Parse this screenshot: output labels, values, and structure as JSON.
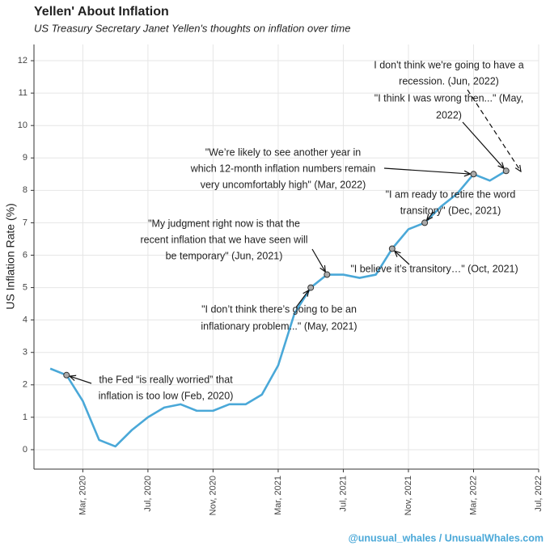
{
  "chart_data": {
    "type": "line",
    "title": "Yellen' About Inflation",
    "subtitle": "US Treasury Secretary Janet Yellen's thoughts on inflation over time",
    "y_label": "US Inflation Rate (%)",
    "x": [
      "2020-01",
      "2020-02",
      "2020-03",
      "2020-04",
      "2020-05",
      "2020-06",
      "2020-07",
      "2020-08",
      "2020-09",
      "2020-10",
      "2020-11",
      "2020-12",
      "2021-01",
      "2021-02",
      "2021-03",
      "2021-04",
      "2021-05",
      "2021-06",
      "2021-07",
      "2021-08",
      "2021-09",
      "2021-10",
      "2021-11",
      "2021-12",
      "2022-01",
      "2022-02",
      "2022-03",
      "2022-04",
      "2022-05"
    ],
    "series": [
      {
        "name": "US Inflation Rate",
        "color": "#4aa8d8",
        "values": [
          2.5,
          2.3,
          1.5,
          0.3,
          0.1,
          0.6,
          1.0,
          1.3,
          1.4,
          1.2,
          1.2,
          1.4,
          1.4,
          1.7,
          2.6,
          4.2,
          5.0,
          5.4,
          5.4,
          5.3,
          5.4,
          6.2,
          6.8,
          7.0,
          7.5,
          7.9,
          8.5,
          8.3,
          8.6
        ]
      }
    ],
    "xlim": [
      "2019-12",
      "2022-07"
    ],
    "xticks": [
      {
        "value": "2020-03",
        "label": "Mar, 2020"
      },
      {
        "value": "2020-07",
        "label": "Jul, 2020"
      },
      {
        "value": "2020-11",
        "label": "Nov, 2020"
      },
      {
        "value": "2021-03",
        "label": "Mar, 2021"
      },
      {
        "value": "2021-07",
        "label": "Jul, 2021"
      },
      {
        "value": "2021-11",
        "label": "Nov, 2021"
      },
      {
        "value": "2022-03",
        "label": "Mar, 2022"
      },
      {
        "value": "2022-07",
        "label": "Jul, 2022"
      }
    ],
    "ylim": [
      -0.6,
      12.5
    ],
    "yticks": [
      0,
      1,
      2,
      3,
      4,
      5,
      6,
      7,
      8,
      9,
      10,
      11,
      12
    ],
    "grid": true,
    "annotations": [
      {
        "lines": [
          "the Fed “is really worried” that",
          "inflation is too low (Feb, 2020)"
        ]
      },
      {
        "lines": [
          "\"I don’t think there’s going to be an",
          "inflationary problem...\" (May, 2021)"
        ]
      },
      {
        "lines": [
          "\"My judgment right now is that the",
          "recent inflation that we have seen will",
          "be temporary\" (Jun, 2021)"
        ]
      },
      {
        "lines": [
          "\"I believe it’s transitory…\" (Oct, 2021)"
        ]
      },
      {
        "lines": [
          "\"I am ready to retire the word",
          "transitory\" (Dec, 2021)"
        ]
      },
      {
        "lines": [
          "\"We’re likely to see another year in",
          "which 12-month inflation numbers remain",
          "very uncomfortably high\" (Mar, 2022)"
        ]
      },
      {
        "lines": [
          "\"I think I was wrong then...\" (May,",
          "2022)"
        ]
      },
      {
        "lines": [
          "I don't think we're going to have a",
          "recession. (Jun, 2022)"
        ]
      }
    ],
    "credit": "@unusual_whales / UnusualWhales.com"
  }
}
